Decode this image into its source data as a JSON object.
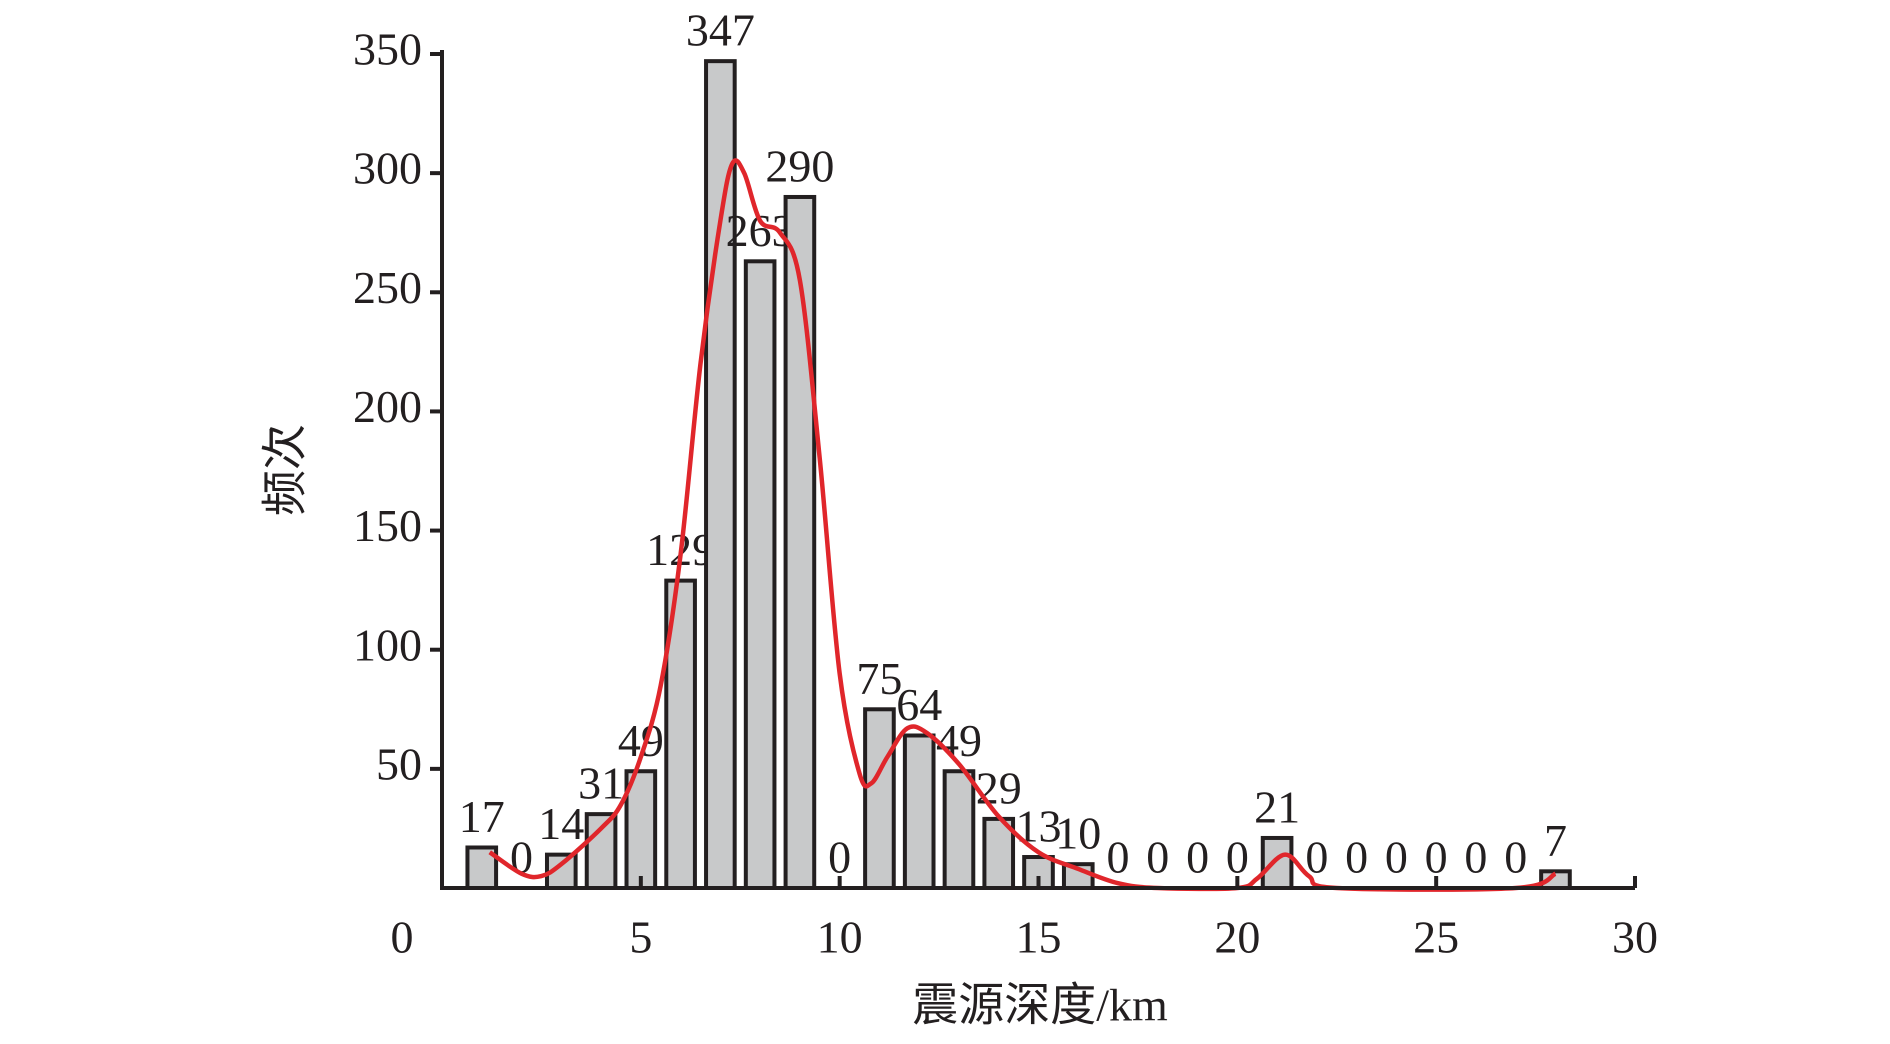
{
  "chart_data": {
    "type": "bar",
    "x_label": "震源深度/km",
    "y_label": "频次",
    "x": [
      1,
      2,
      3,
      4,
      5,
      6,
      7,
      8,
      9,
      10,
      11,
      12,
      13,
      14,
      15,
      16,
      17,
      18,
      19,
      20,
      21,
      22,
      23,
      24,
      25,
      26,
      27,
      28
    ],
    "values": [
      17,
      0,
      14,
      31,
      49,
      129,
      347,
      263,
      290,
      0,
      75,
      64,
      49,
      29,
      13,
      10,
      0,
      0,
      0,
      0,
      21,
      0,
      0,
      0,
      0,
      0,
      0,
      7
    ],
    "color": "#c8c9ca",
    "curve": {
      "type": "line",
      "color": "#e0262b",
      "x": [
        1.2,
        2,
        2.5,
        3,
        4,
        4.5,
        5,
        5.5,
        6,
        6.5,
        7,
        7.3,
        7.6,
        8,
        8.5,
        9,
        9.5,
        10,
        10.5,
        10.8,
        11.2,
        11.7,
        12.2,
        13,
        14,
        15,
        16,
        17,
        18,
        20,
        20.5,
        21.2,
        21.8,
        22.5,
        27,
        28
      ],
      "values": [
        15,
        6,
        5,
        10,
        25,
        35,
        55,
        85,
        140,
        220,
        280,
        304,
        300,
        280,
        275,
        255,
        180,
        90,
        48,
        44,
        55,
        67,
        65,
        52,
        30,
        15,
        8,
        2,
        0,
        0,
        4,
        14,
        5,
        0,
        0,
        6
      ]
    },
    "xlim": [
      0,
      30
    ],
    "xticks": [
      0,
      5,
      10,
      15,
      20,
      25,
      30
    ],
    "ylim": [
      0,
      350
    ],
    "yticks": [
      50,
      100,
      150,
      200,
      250,
      300,
      350
    ],
    "grid": false
  }
}
